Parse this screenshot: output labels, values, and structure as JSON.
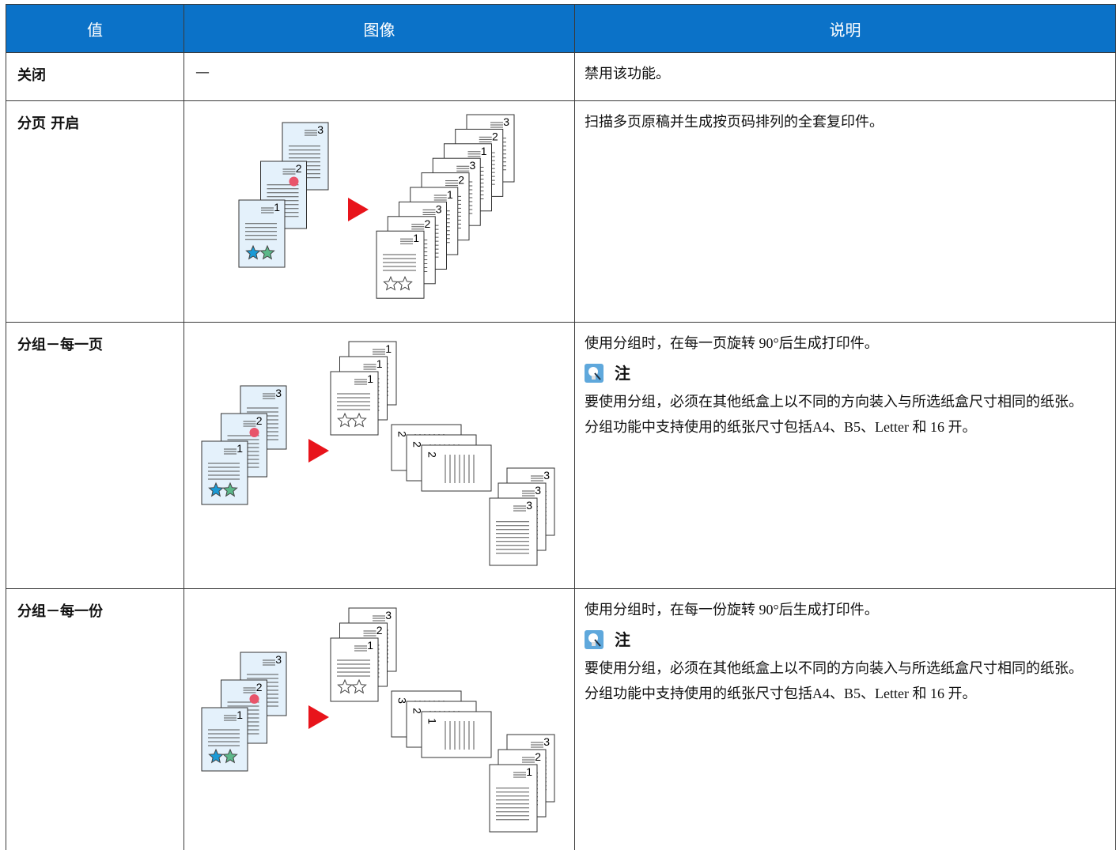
{
  "table": {
    "header": [
      "值",
      "图像",
      "说明"
    ],
    "rows": [
      {
        "value": "关闭",
        "image_text": "—",
        "description": "禁用该功能。"
      },
      {
        "value": "分页 开启",
        "image": {
          "originals": [
            "3",
            "2",
            "1"
          ],
          "stacks": [
            [
              "3",
              "2",
              "1",
              "3",
              "2",
              "1",
              "3",
              "2",
              "1"
            ]
          ]
        },
        "description": "扫描多页原稿并生成按页码排列的全套复印件。"
      },
      {
        "value": "分组－每一页",
        "image": {
          "originals": [
            "3",
            "2",
            "1"
          ],
          "stacks": [
            [
              "1",
              "1",
              "1"
            ],
            [
              "2",
              "2",
              "2"
            ],
            [
              "3",
              "3",
              "3"
            ]
          ]
        },
        "description": "使用分组时，在每一页旋转 90°后生成打印件。",
        "note": {
          "title": "注",
          "paragraphs": [
            "要使用分组，必须在其他纸盒上以不同的方向装入与所选纸盒尺寸相同的纸张。",
            "分组功能中支持使用的纸张尺寸包括A4、B5、Letter 和 16 开。"
          ]
        }
      },
      {
        "value": "分组－每一份",
        "image": {
          "originals": [
            "3",
            "2",
            "1"
          ],
          "stacks": [
            [
              "3",
              "2",
              "1"
            ],
            [
              "3",
              "2",
              "1"
            ],
            [
              "3",
              "2",
              "1"
            ]
          ]
        },
        "description": "使用分组时，在每一份旋转 90°后生成打印件。",
        "note": {
          "title": "注",
          "paragraphs": [
            "要使用分组，必须在其他纸盒上以不同的方向装入与所选纸盒尺寸相同的纸张。",
            "分组功能中支持使用的纸张尺寸包括A4、B5、Letter 和 16 开。"
          ]
        }
      }
    ]
  }
}
